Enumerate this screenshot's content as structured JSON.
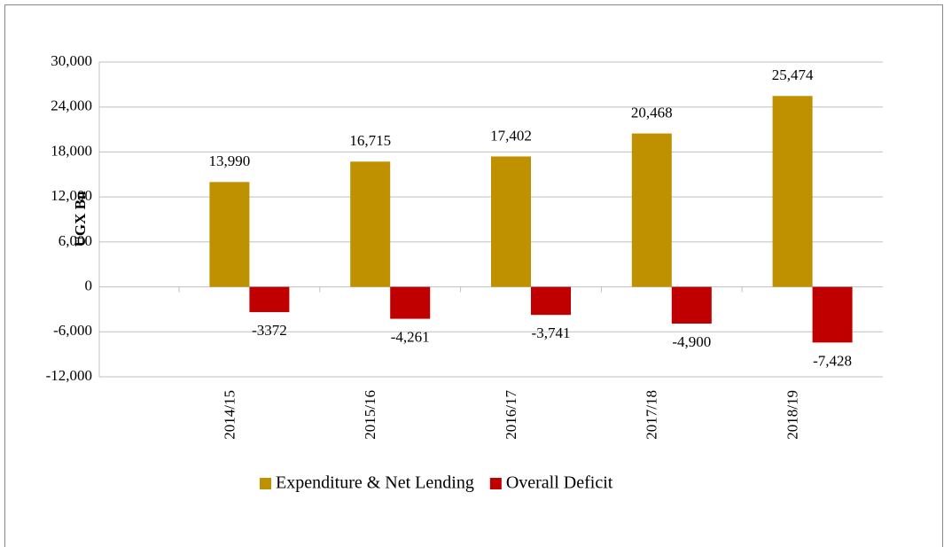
{
  "chart_data": {
    "type": "bar",
    "y_label": "UGX Bn",
    "categories": [
      "2014/15",
      "2015/16",
      "2016/17",
      "2017/18",
      "2018/19"
    ],
    "series": [
      {
        "name": "Expenditure & Net Lending",
        "color": "#bf9000",
        "values": [
          13990,
          16715,
          17402,
          20468,
          25474
        ],
        "value_labels": [
          "13,990",
          "16,715",
          "17,402",
          "20,468",
          "25,474"
        ]
      },
      {
        "name": "Overall Deficit",
        "color": "#c00000",
        "values": [
          -3372,
          -4261,
          -3741,
          -4900,
          -7428
        ],
        "value_labels": [
          "-3372",
          "-4,261",
          "-3,741",
          "-4,900",
          "-7,428"
        ]
      }
    ],
    "ylim": [
      -12000,
      30000
    ],
    "yticks": [
      {
        "value": -12000,
        "label": "-12,000"
      },
      {
        "value": -6000,
        "label": "-6,000"
      },
      0,
      {
        "value": 6000,
        "label": "6,000"
      },
      {
        "value": 12000,
        "label": "12,000"
      },
      {
        "value": 18000,
        "label": "18,000"
      },
      {
        "value": 24000,
        "label": "24,000"
      },
      {
        "value": 30000,
        "label": "30,000"
      }
    ],
    "grid": true
  }
}
